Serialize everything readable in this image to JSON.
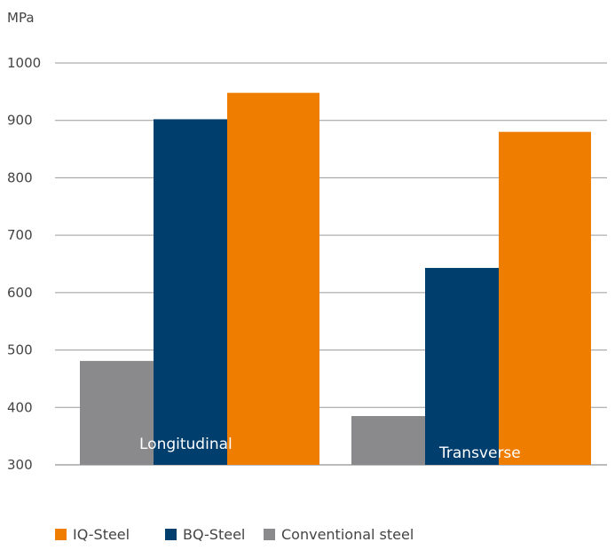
{
  "chart_data": {
    "type": "bar",
    "ylabel": "MPa",
    "ylim": [
      300,
      1000
    ],
    "yticks": [
      300,
      400,
      500,
      600,
      700,
      800,
      900,
      1000
    ],
    "grid": true,
    "legend_position": "bottom",
    "categories": [
      "Longitudinal",
      "Transverse"
    ],
    "series": [
      {
        "name": "Conventional steel",
        "color": "#8a8a8d",
        "values": [
          481,
          385
        ]
      },
      {
        "name": "BQ-Steel",
        "color": "#003e6e",
        "values": [
          902,
          643
        ]
      },
      {
        "name": "IQ-Steel",
        "color": "#ee7d00",
        "values": [
          948,
          880
        ]
      }
    ],
    "legend": [
      "IQ-Steel",
      "BQ-Steel",
      "Conventional steel"
    ]
  }
}
